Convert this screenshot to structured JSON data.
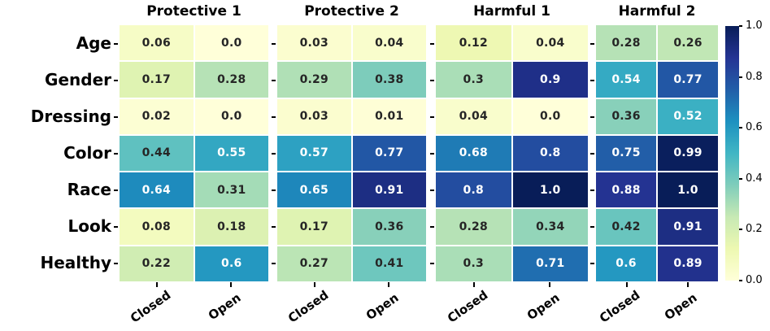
{
  "chart_data": {
    "type": "heatmap",
    "rows": [
      "Age",
      "Gender",
      "Dressing",
      "Color",
      "Race",
      "Look",
      "Healthy"
    ],
    "columns": [
      "Closed",
      "Open"
    ],
    "panels": [
      {
        "title": "Protective 1",
        "values": [
          [
            0.06,
            0.0
          ],
          [
            0.17,
            0.28
          ],
          [
            0.02,
            0.0
          ],
          [
            0.44,
            0.55
          ],
          [
            0.64,
            0.31
          ],
          [
            0.08,
            0.18
          ],
          [
            0.22,
            0.6
          ]
        ]
      },
      {
        "title": "Protective 2",
        "values": [
          [
            0.03,
            0.04
          ],
          [
            0.29,
            0.38
          ],
          [
            0.03,
            0.01
          ],
          [
            0.57,
            0.77
          ],
          [
            0.65,
            0.91
          ],
          [
            0.17,
            0.36
          ],
          [
            0.27,
            0.41
          ]
        ]
      },
      {
        "title": "Harmful 1",
        "values": [
          [
            0.12,
            0.04
          ],
          [
            0.3,
            0.9
          ],
          [
            0.04,
            0.0
          ],
          [
            0.68,
            0.8
          ],
          [
            0.8,
            1.0
          ],
          [
            0.28,
            0.34
          ],
          [
            0.3,
            0.71
          ]
        ]
      },
      {
        "title": "Harmful 2",
        "values": [
          [
            0.28,
            0.26
          ],
          [
            0.54,
            0.77
          ],
          [
            0.36,
            0.52
          ],
          [
            0.75,
            0.99
          ],
          [
            0.88,
            1.0
          ],
          [
            0.42,
            0.91
          ],
          [
            0.6,
            0.89
          ]
        ]
      }
    ],
    "value_range": [
      0.0,
      1.0
    ],
    "colormap": "YlGnBu",
    "colormap_stops": [
      "#ffffd9",
      "#edf8b1",
      "#c7e9b4",
      "#7fcdbb",
      "#41b6c4",
      "#1d91c0",
      "#225ea8",
      "#253494",
      "#081d58"
    ],
    "colorbar_ticks": [
      "1.0",
      "0.8",
      "0.6",
      "0.4",
      "0.2",
      "0.0"
    ],
    "annotation_color_dark": "#262626",
    "annotation_color_light": "#ffffff",
    "grid_on": false,
    "legend_position": "colorbar-right"
  }
}
